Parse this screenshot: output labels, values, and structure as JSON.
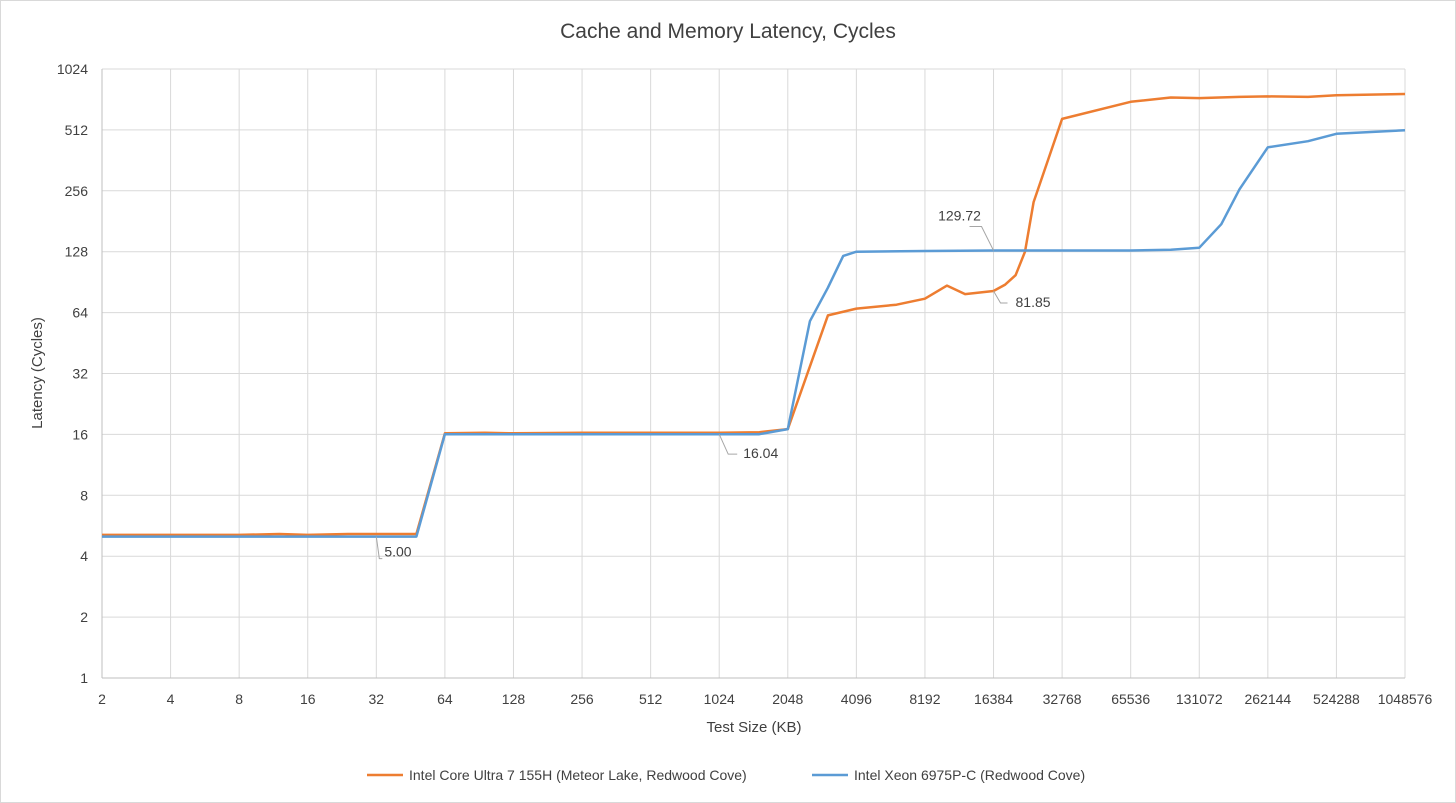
{
  "chart_data": {
    "type": "line",
    "title": "Cache and Memory Latency, Cycles",
    "xlabel": "Test Size (KB)",
    "ylabel": "Latency (Cycles)",
    "x_scale": "log2",
    "y_scale": "log2",
    "xlim": [
      2,
      1048576
    ],
    "ylim": [
      1,
      1024
    ],
    "x_ticks": [
      "2",
      "4",
      "8",
      "16",
      "32",
      "64",
      "128",
      "256",
      "512",
      "1024",
      "2048",
      "4096",
      "8192",
      "16384",
      "32768",
      "65536",
      "131072",
      "262144",
      "524288",
      "1048576"
    ],
    "y_ticks": [
      "1",
      "2",
      "4",
      "8",
      "16",
      "32",
      "64",
      "128",
      "256",
      "512",
      "1024"
    ],
    "grid": true,
    "legend_position": "bottom",
    "series": [
      {
        "name": "Intel Core Ultra 7 155H (Meteor Lake, Redwood Cove)",
        "color": "#ed7d31",
        "points": [
          [
            2,
            5.1
          ],
          [
            4,
            5.1
          ],
          [
            8,
            5.1
          ],
          [
            12,
            5.15
          ],
          [
            16,
            5.1
          ],
          [
            24,
            5.15
          ],
          [
            32,
            5.15
          ],
          [
            48,
            5.15
          ],
          [
            64,
            16.2
          ],
          [
            96,
            16.3
          ],
          [
            128,
            16.2
          ],
          [
            256,
            16.3
          ],
          [
            512,
            16.3
          ],
          [
            1024,
            16.3
          ],
          [
            1536,
            16.4
          ],
          [
            2048,
            17.0
          ],
          [
            3072,
            62
          ],
          [
            4096,
            67
          ],
          [
            6144,
            70
          ],
          [
            8192,
            75
          ],
          [
            10240,
            87
          ],
          [
            12288,
            79
          ],
          [
            16384,
            81.85
          ],
          [
            18432,
            88
          ],
          [
            20480,
            98
          ],
          [
            22528,
            128
          ],
          [
            24576,
            225
          ],
          [
            32768,
            580
          ],
          [
            65536,
            705
          ],
          [
            98304,
            740
          ],
          [
            131072,
            735
          ],
          [
            196608,
            745
          ],
          [
            262144,
            750
          ],
          [
            393216,
            745
          ],
          [
            524288,
            760
          ],
          [
            1048576,
            770
          ]
        ]
      },
      {
        "name": "Intel Xeon 6975P-C (Redwood Cove)",
        "color": "#5b9bd5",
        "points": [
          [
            2,
            5.0
          ],
          [
            4,
            5.0
          ],
          [
            8,
            5.0
          ],
          [
            16,
            5.0
          ],
          [
            32,
            5.0
          ],
          [
            48,
            5.0
          ],
          [
            64,
            16.04
          ],
          [
            128,
            16.04
          ],
          [
            256,
            16.04
          ],
          [
            512,
            16.04
          ],
          [
            1024,
            16.04
          ],
          [
            1536,
            16.04
          ],
          [
            2048,
            17.0
          ],
          [
            2560,
            58
          ],
          [
            3072,
            85
          ],
          [
            3584,
            122
          ],
          [
            4096,
            128
          ],
          [
            8192,
            129
          ],
          [
            16384,
            129.72
          ],
          [
            32768,
            129.72
          ],
          [
            65536,
            129.72
          ],
          [
            98304,
            131
          ],
          [
            131072,
            134
          ],
          [
            163840,
            175
          ],
          [
            196608,
            260
          ],
          [
            262144,
            420
          ],
          [
            393216,
            450
          ],
          [
            524288,
            490
          ],
          [
            1048576,
            510
          ]
        ]
      }
    ],
    "annotations": [
      {
        "series": 1,
        "x": 32,
        "y": 5.0,
        "label": "5.00"
      },
      {
        "series": 1,
        "x": 1024,
        "y": 16.04,
        "label": "16.04"
      },
      {
        "series": 1,
        "x": 16384,
        "y": 129.72,
        "label": "129.72"
      },
      {
        "series": 0,
        "x": 16384,
        "y": 81.85,
        "label": "81.85"
      }
    ]
  }
}
